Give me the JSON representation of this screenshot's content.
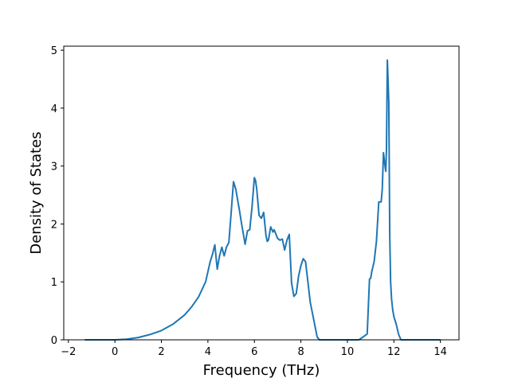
{
  "chart_data": {
    "type": "line",
    "title": "",
    "xlabel": "Frequency (THz)",
    "ylabel": "Density of States",
    "xlim": [
      -2.2,
      14.8
    ],
    "ylim": [
      0,
      5.07
    ],
    "xticks": [
      -2,
      0,
      2,
      4,
      6,
      8,
      10,
      12,
      14
    ],
    "yticks": [
      0,
      1,
      2,
      3,
      4,
      5
    ],
    "grid": false,
    "legend": "none",
    "series": [
      {
        "color": "#1f77b4",
        "x": [
          -1.3,
          -1.0,
          -0.5,
          0.0,
          0.5,
          1.0,
          1.5,
          2.0,
          2.5,
          3.0,
          3.3,
          3.6,
          3.9,
          4.1,
          4.2,
          4.3,
          4.4,
          4.5,
          4.55,
          4.6,
          4.7,
          4.8,
          4.9,
          5.0,
          5.1,
          5.2,
          5.35,
          5.45,
          5.6,
          5.7,
          5.8,
          5.9,
          6.0,
          6.05,
          6.1,
          6.2,
          6.3,
          6.4,
          6.5,
          6.55,
          6.6,
          6.7,
          6.8,
          6.85,
          6.9,
          7.0,
          7.1,
          7.2,
          7.3,
          7.4,
          7.5,
          7.6,
          7.7,
          7.8,
          7.9,
          8.0,
          8.1,
          8.2,
          8.3,
          8.4,
          8.5,
          8.6,
          8.7,
          8.8,
          8.9,
          8.95,
          9.0,
          9.5,
          10.0,
          10.5,
          10.85,
          10.95,
          11.0,
          11.05,
          11.15,
          11.25,
          11.35,
          11.45,
          11.5,
          11.55,
          11.62,
          11.65,
          11.68,
          11.72,
          11.78,
          11.82,
          11.86,
          11.9,
          11.95,
          12.0,
          12.1,
          12.2,
          12.3,
          12.4,
          12.5,
          12.6,
          12.7,
          12.75,
          12.8,
          13.0,
          14.0
        ],
        "y": [
          0.0,
          0.0,
          0.0,
          0.0,
          0.01,
          0.04,
          0.09,
          0.16,
          0.27,
          0.43,
          0.57,
          0.74,
          1.0,
          1.35,
          1.48,
          1.64,
          1.22,
          1.45,
          1.52,
          1.6,
          1.45,
          1.6,
          1.68,
          2.2,
          2.73,
          2.6,
          2.25,
          2.0,
          1.65,
          1.88,
          1.9,
          2.3,
          2.8,
          2.75,
          2.6,
          2.15,
          2.1,
          2.2,
          1.8,
          1.7,
          1.72,
          1.95,
          1.86,
          1.9,
          1.85,
          1.75,
          1.72,
          1.74,
          1.55,
          1.72,
          1.82,
          0.98,
          0.75,
          0.8,
          1.1,
          1.28,
          1.4,
          1.35,
          1.0,
          0.65,
          0.45,
          0.25,
          0.05,
          0.0,
          0.0,
          0.0,
          0.0,
          0.0,
          0.0,
          0.0,
          0.1,
          1.05,
          1.06,
          1.18,
          1.35,
          1.7,
          2.38,
          2.38,
          2.6,
          3.23,
          3.0,
          2.91,
          3.3,
          4.83,
          4.1,
          1.8,
          1.0,
          0.7,
          0.52,
          0.4,
          0.27,
          0.1,
          0.0,
          0.0,
          0.0,
          0.0,
          0.0,
          0.0,
          0.0,
          0.0,
          0.0
        ]
      }
    ]
  }
}
